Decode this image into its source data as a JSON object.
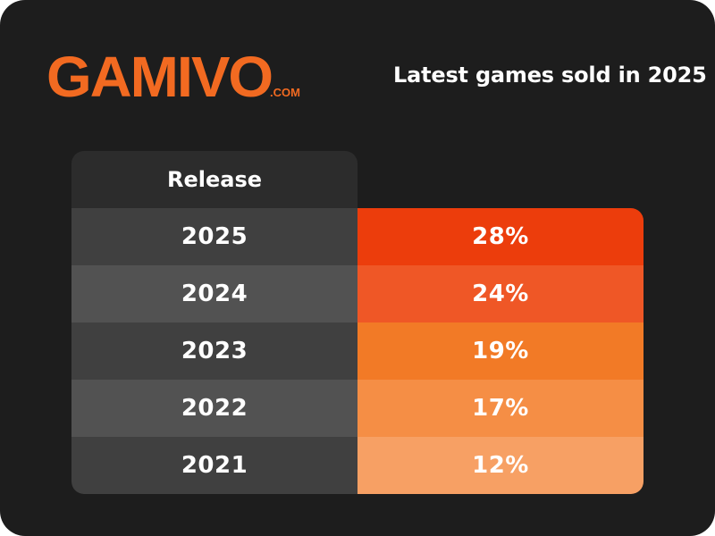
{
  "brand": {
    "logo_text": "GAMIVO",
    "logo_suffix": ".COM",
    "accent_color": "#f26a21"
  },
  "header": {
    "title": "Latest games sold in 2025"
  },
  "chart_data": {
    "type": "table",
    "columns": [
      "Release",
      ""
    ],
    "rows": [
      {
        "year": "2025",
        "share": "28%",
        "value": 28,
        "color": "#ec3d0c"
      },
      {
        "year": "2024",
        "share": "24%",
        "value": 24,
        "color": "#ef5726"
      },
      {
        "year": "2023",
        "share": "19%",
        "value": 19,
        "color": "#f27a26"
      },
      {
        "year": "2022",
        "share": "17%",
        "value": 17,
        "color": "#f58e45"
      },
      {
        "year": "2021",
        "share": "12%",
        "value": 12,
        "color": "#f7a064"
      }
    ],
    "year_cell_colors": [
      "#404040",
      "#525252",
      "#404040",
      "#525252",
      "#404040"
    ]
  }
}
